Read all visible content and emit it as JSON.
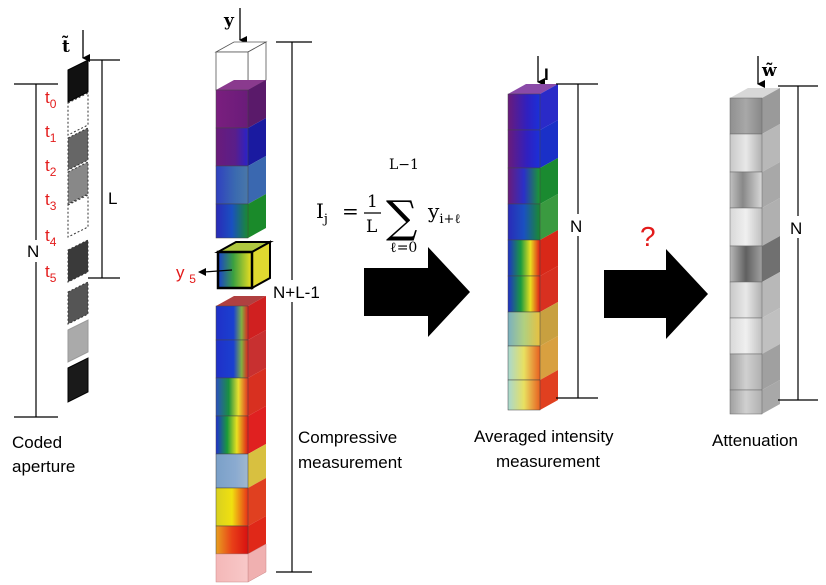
{
  "coded_aperture": {
    "symbol": "t̃",
    "t_labels": [
      "t0",
      "t1",
      "t2",
      "t3",
      "t4",
      "t5"
    ],
    "L_label": "L",
    "N_label": "N",
    "caption_line1": "Coded",
    "caption_line2": "aperture"
  },
  "measurement": {
    "symbol": "y",
    "highlight_label": "y5",
    "length_label": "N+L-1",
    "caption_line1": "Compressive",
    "caption_line2": "measurement"
  },
  "equation": {
    "lhs": "I",
    "lhs_sub": "j",
    "equals": "=",
    "frac_num": "1",
    "frac_den": "L",
    "sum_top": "L−1",
    "sum_bottom": "ℓ=0",
    "term": "y",
    "term_sub": "i+ℓ"
  },
  "averaged": {
    "symbol": "I",
    "N_label": "N",
    "caption_line1": "Averaged intensity",
    "caption_line2": "measurement"
  },
  "question_mark": "?",
  "attenuation": {
    "symbol": "w̃",
    "N_label": "N",
    "caption": "Attenuation"
  },
  "colors": {
    "red_text": "#e31b1b",
    "arrow": "#000000"
  }
}
